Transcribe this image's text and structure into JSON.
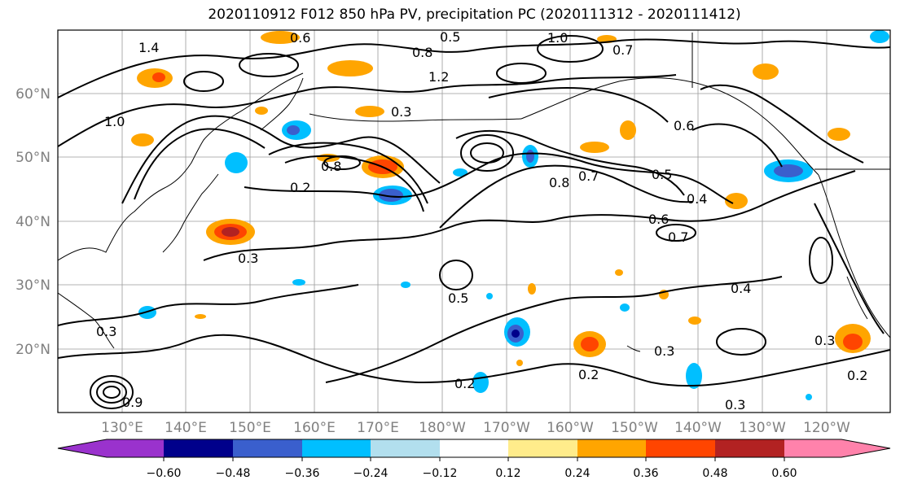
{
  "title": "2020110912 F012 850 hPa PV, precipitation PC (2020111312 - 2020111412)",
  "lat_labels": [
    "60°N",
    "50°N",
    "40°N",
    "30°N",
    "20°N"
  ],
  "lon_labels": [
    "130°E",
    "140°E",
    "150°E",
    "160°E",
    "170°E",
    "180°W",
    "170°W",
    "160°W",
    "150°W",
    "140°W",
    "130°W",
    "120°W"
  ],
  "colorbar": {
    "ticks": [
      "−0.60",
      "−0.48",
      "−0.36",
      "−0.24",
      "−0.12",
      "0.12",
      "0.24",
      "0.36",
      "0.48",
      "0.60"
    ],
    "colors": [
      "#9a32cd",
      "#00008b",
      "#3a5fcd",
      "#00bfff",
      "#b2dfee",
      "#ffffff",
      "#ffec8b",
      "#ffa500",
      "#ff4500",
      "#b22222",
      "#ff82ab"
    ]
  },
  "contour_labels": [
    "0.6",
    "0.5",
    "1.0",
    "0.7",
    "0.8",
    "1.4",
    "1.2",
    "0.3",
    "0.6",
    "0.2",
    "0.8",
    "0.7",
    "0.5",
    "0.4",
    "0.6",
    "0.7",
    "0.3",
    "0.5",
    "0.4",
    "0.3",
    "0.3",
    "0.2",
    "0.3",
    "0.2",
    "0.3",
    "0.2",
    "1.0",
    "0.8",
    "0.9"
  ]
}
